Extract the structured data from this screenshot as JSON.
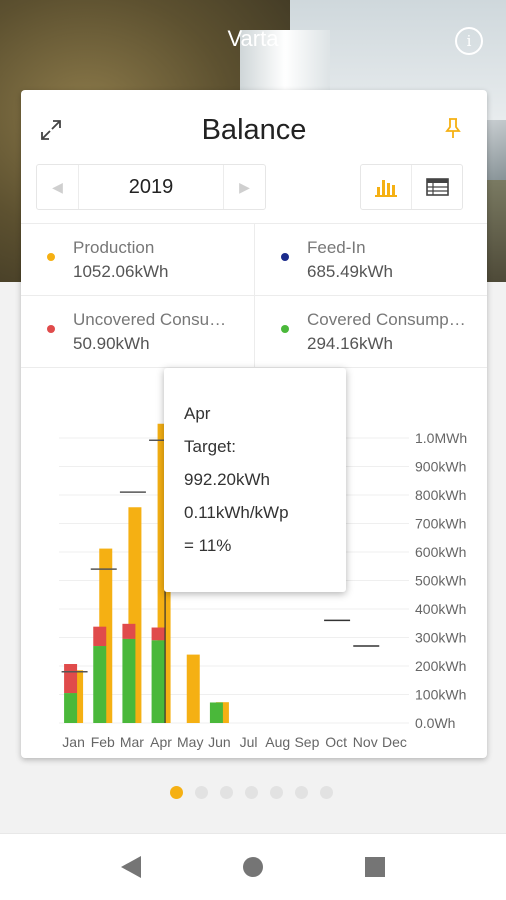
{
  "app": {
    "title": "Varta"
  },
  "card": {
    "title": "Balance",
    "year": "2019",
    "prev_glyph": "◀",
    "next_glyph": "▶",
    "icons": [
      "expand-icon",
      "pin-icon",
      "bar-chart-icon",
      "table-icon",
      "info-icon"
    ]
  },
  "stats": [
    {
      "label": "Production",
      "value": "1052.06kWh",
      "color": "#f5b013"
    },
    {
      "label": "Feed-In",
      "value": "685.49kWh",
      "color": "#1b2b8c"
    },
    {
      "label": "Uncovered Consu…",
      "value": "50.90kWh",
      "color": "#e04b4b"
    },
    {
      "label": "Covered Consump…",
      "value": "294.16kWh",
      "color": "#4ab83a"
    }
  ],
  "tooltip": {
    "month": "Apr",
    "target_label": "Target:",
    "target_value": "992.20kWh",
    "specific": "0.11kWh/kWp",
    "percent": "= 11%"
  },
  "chart_data": {
    "type": "bar",
    "categories": [
      "Jan",
      "Feb",
      "Mar",
      "Apr",
      "May",
      "Jun",
      "Jul",
      "Aug",
      "Sep",
      "Oct",
      "Nov",
      "Dec"
    ],
    "y_tick_labels": [
      "0.0Wh",
      "100kWh",
      "200kWh",
      "300kWh",
      "400kWh",
      "500kWh",
      "600kWh",
      "700kWh",
      "800kWh",
      "900kWh",
      "1.0MWh"
    ],
    "ylim": [
      0,
      1000
    ],
    "grid": true,
    "series": [
      {
        "name": "Production",
        "color": "#f5b013",
        "values": [
          185,
          612,
          757,
          1050,
          240,
          73,
          0,
          0,
          0,
          0,
          0,
          0
        ]
      },
      {
        "name": "Uncovered Consumption",
        "color": "#e04b4b",
        "values": [
          102,
          68,
          53,
          45,
          0,
          0,
          0,
          0,
          0,
          0,
          0,
          0
        ]
      },
      {
        "name": "Covered Consumption",
        "color": "#4ab83a",
        "values": [
          105,
          270,
          295,
          290,
          0,
          72,
          0,
          0,
          0,
          0,
          0,
          0
        ]
      }
    ],
    "target_values": [
      180,
      540,
      810,
      992,
      null,
      null,
      null,
      null,
      null,
      360,
      270,
      null
    ]
  },
  "pager": {
    "count": 7,
    "active": 0,
    "active_color": "#f5b013"
  },
  "nav": {
    "icons": [
      "back-icon",
      "home-icon",
      "recent-apps-icon"
    ]
  }
}
